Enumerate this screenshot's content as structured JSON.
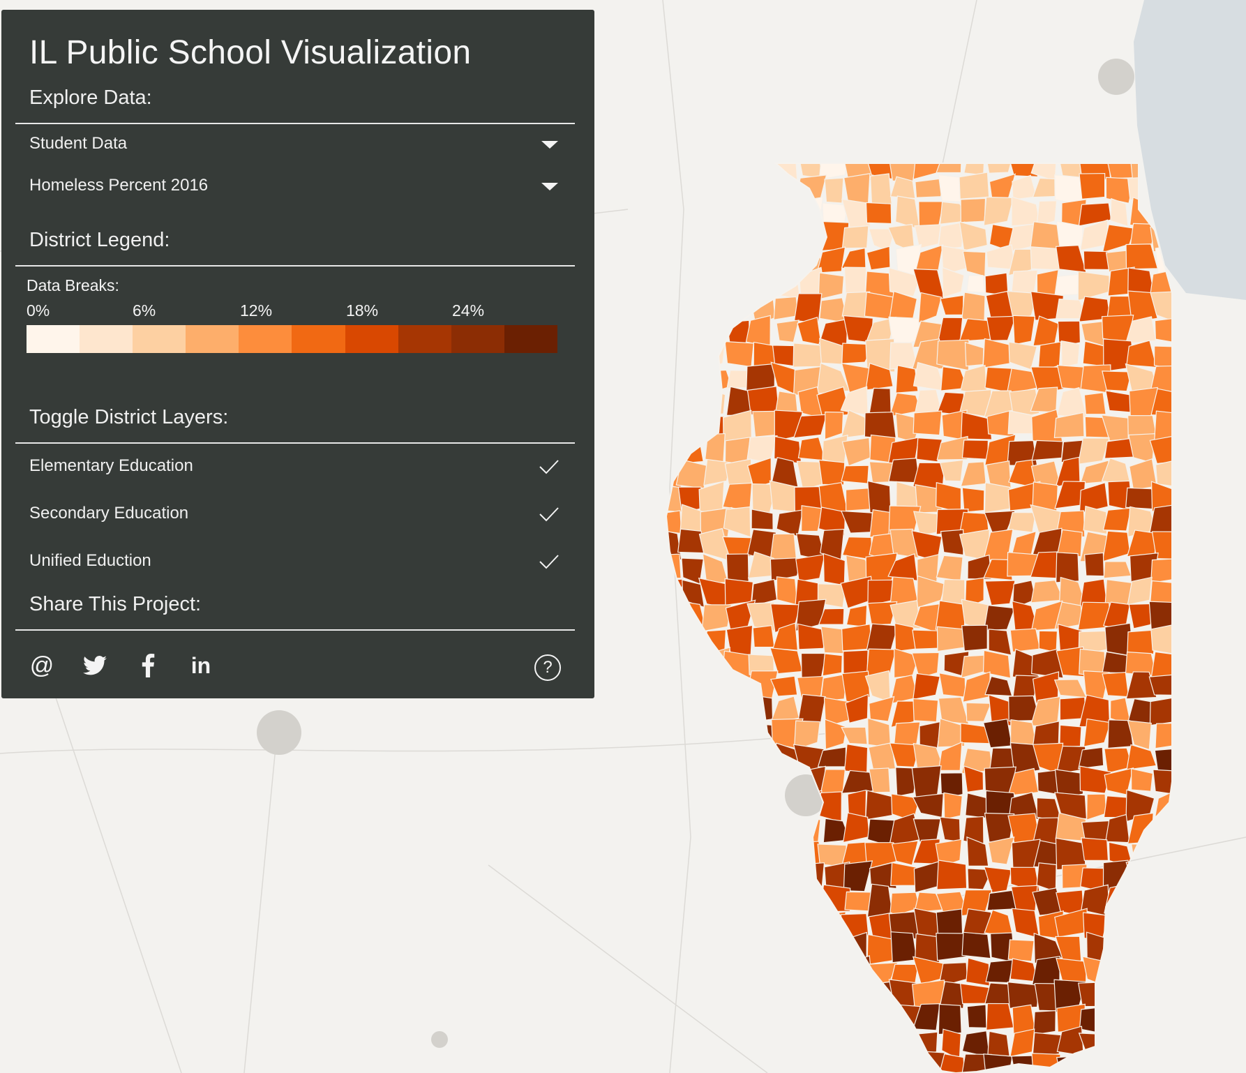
{
  "app": {
    "title": "IL Public School Visualization"
  },
  "explore": {
    "heading": "Explore Data:",
    "category_select": "Student Data",
    "variable_select": "Homeless Percent 2016"
  },
  "legend": {
    "heading": "District Legend:",
    "breaks_label": "Data Breaks:",
    "ticks": [
      "0%",
      "6%",
      "12%",
      "18%",
      "24%"
    ],
    "colors": [
      "#fff5eb",
      "#fee6ce",
      "#fdd0a2",
      "#fdae6b",
      "#fd8d3c",
      "#f16913",
      "#d94801",
      "#a63603",
      "#8c2d04",
      "#6b2002"
    ]
  },
  "layers": {
    "heading": "Toggle District Layers:",
    "items": [
      {
        "label": "Elementary Education",
        "checked": true
      },
      {
        "label": "Secondary Education",
        "checked": true
      },
      {
        "label": "Unified Eduction",
        "checked": true
      }
    ]
  },
  "share": {
    "heading": "Share This Project:",
    "icons": [
      "email-icon",
      "twitter-icon",
      "facebook-icon",
      "linkedin-icon"
    ],
    "help_icon": "help-icon",
    "email_glyph": "@",
    "linkedin_glyph": "in",
    "help_glyph": "?"
  },
  "map": {
    "region": "Illinois",
    "choropleth_variable": "Homeless Percent 2016",
    "lake_color": "#d7dde1",
    "basemap_color": "#f3f2ef"
  }
}
